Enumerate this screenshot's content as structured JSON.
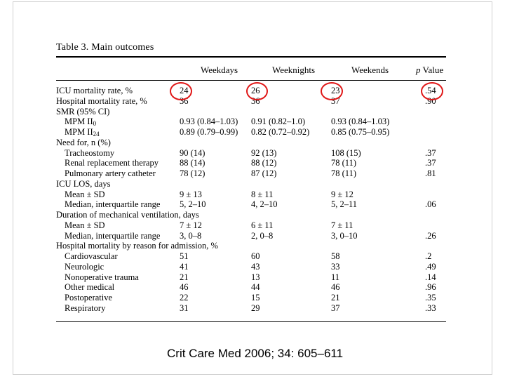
{
  "table": {
    "title": "Table 3. Main outcomes",
    "headers": {
      "weekdays": "Weekdays",
      "weeknights": "Weeknights",
      "weekends": "Weekends",
      "p_italic": "p",
      "p_rest": " Value"
    },
    "rows": [
      {
        "label": "ICU mortality rate, %",
        "weekdays": "24",
        "weeknights": "26",
        "weekends": "23",
        "p": ".54"
      },
      {
        "label": "Hospital mortality rate, %",
        "weekdays": "36",
        "weeknights": "36",
        "weekends": "37",
        "p": ".90"
      },
      {
        "label": "SMR (95% CI)",
        "weekdays": "",
        "weeknights": "",
        "weekends": "",
        "p": ""
      },
      {
        "label": "MPM II",
        "label_sub": "0",
        "weekdays": "0.93 (0.84–1.03)",
        "weeknights": "0.91 (0.82–1.0)",
        "weekends": "0.93 (0.84–1.03)",
        "p": ""
      },
      {
        "label": "MPM II",
        "label_sub": "24",
        "weekdays": "0.89 (0.79–0.99)",
        "weeknights": "0.82 (0.72–0.92)",
        "weekends": "0.85 (0.75–0.95)",
        "p": ""
      },
      {
        "label": "Need for, n (%)",
        "weekdays": "",
        "weeknights": "",
        "weekends": "",
        "p": ""
      },
      {
        "label": "Tracheostomy",
        "weekdays": "90 (14)",
        "weeknights": "92 (13)",
        "weekends": "108 (15)",
        "p": ".37"
      },
      {
        "label": "Renal replacement therapy",
        "weekdays": "88 (14)",
        "weeknights": "88 (12)",
        "weekends": "78 (11)",
        "p": ".37"
      },
      {
        "label": "Pulmonary artery catheter",
        "weekdays": "78 (12)",
        "weeknights": "87 (12)",
        "weekends": "78 (11)",
        "p": ".81"
      },
      {
        "label": "ICU LOS, days",
        "weekdays": "",
        "weeknights": "",
        "weekends": "",
        "p": ""
      },
      {
        "label": "Mean ± SD",
        "weekdays": "9 ± 13",
        "weeknights": "8 ± 11",
        "weekends": "9 ± 12",
        "p": ""
      },
      {
        "label": "Median, interquartile range",
        "weekdays": "5, 2–10",
        "weeknights": "4, 2–10",
        "weekends": "5, 2–11",
        "p": ".06"
      },
      {
        "label": "Duration of mechanical ventilation, days",
        "weekdays": "",
        "weeknights": "",
        "weekends": "",
        "p": ""
      },
      {
        "label": "Mean ± SD",
        "weekdays": "7 ± 12",
        "weeknights": "6 ± 11",
        "weekends": "7 ± 11",
        "p": ""
      },
      {
        "label": "Median, interquartile range",
        "weekdays": "3, 0–8",
        "weeknights": "2, 0–8",
        "weekends": "3, 0–10",
        "p": ".26"
      },
      {
        "label": "Hospital mortality by reason for admission, %",
        "weekdays": "",
        "weeknights": "",
        "weekends": "",
        "p": ""
      },
      {
        "label": "Cardiovascular",
        "weekdays": "51",
        "weeknights": "60",
        "weekends": "58",
        "p": ".2"
      },
      {
        "label": "Neurologic",
        "weekdays": "41",
        "weeknights": "43",
        "weekends": "33",
        "p": ".49"
      },
      {
        "label": "Nonoperative trauma",
        "weekdays": "21",
        "weeknights": "13",
        "weekends": "11",
        "p": ".14"
      },
      {
        "label": "Other medical",
        "weekdays": "46",
        "weeknights": "44",
        "weekends": "46",
        "p": ".96"
      },
      {
        "label": "Postoperative",
        "weekdays": "22",
        "weeknights": "15",
        "weekends": "21",
        "p": ".35"
      },
      {
        "label": "Respiratory",
        "weekdays": "31",
        "weeknights": "29",
        "weekends": "37",
        "p": ".33"
      }
    ]
  },
  "citation": "Crit Care Med 2006; 34: 605–611",
  "colors": {
    "highlight_circle": "#e01818"
  }
}
